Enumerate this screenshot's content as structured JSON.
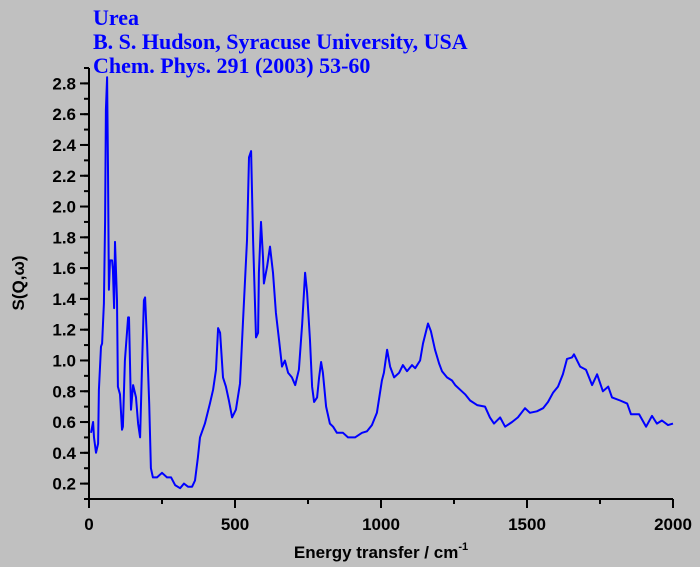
{
  "chart_data": {
    "type": "line",
    "title_lines": [
      "Urea",
      "B. S. Hudson, Syracuse University, USA",
      "Chem. Phys. 291 (2003) 53-60"
    ],
    "xlabel": "Energy transfer / cm",
    "xlabel_superscript": "-1",
    "ylabel": "S(Q,ω)",
    "xlim": [
      0,
      2000
    ],
    "ylim": [
      0.1,
      2.9
    ],
    "xticks": [
      0,
      500,
      1000,
      1500,
      2000
    ],
    "xminor_step": 250,
    "yticks": [
      0.2,
      0.4,
      0.6,
      0.8,
      1.0,
      1.2,
      1.4,
      1.6,
      1.8,
      2.0,
      2.2,
      2.4,
      2.6,
      2.8
    ],
    "yminor_step": 0.1,
    "grid": false,
    "colors": {
      "line": "#0000ff",
      "axis": "#000000",
      "background": "#c0c0c0",
      "title": "#0000ff"
    },
    "series": [
      {
        "name": "Urea",
        "points": [
          [
            7,
            0.53
          ],
          [
            14,
            0.6
          ],
          [
            17,
            0.5
          ],
          [
            24,
            0.4
          ],
          [
            31,
            0.46
          ],
          [
            34,
            0.81
          ],
          [
            41,
            1.09
          ],
          [
            45,
            1.11
          ],
          [
            51,
            1.37
          ],
          [
            55,
            1.91
          ],
          [
            58,
            2.63
          ],
          [
            62,
            2.84
          ],
          [
            65,
            2.24
          ],
          [
            68,
            1.46
          ],
          [
            72,
            1.65
          ],
          [
            79,
            1.65
          ],
          [
            82,
            1.59
          ],
          [
            86,
            1.34
          ],
          [
            89,
            1.77
          ],
          [
            96,
            1.39
          ],
          [
            99,
            0.83
          ],
          [
            106,
            0.78
          ],
          [
            113,
            0.55
          ],
          [
            116,
            0.57
          ],
          [
            123,
            1.0
          ],
          [
            134,
            1.28
          ],
          [
            137,
            1.28
          ],
          [
            144,
            0.68
          ],
          [
            151,
            0.84
          ],
          [
            161,
            0.76
          ],
          [
            168,
            0.59
          ],
          [
            175,
            0.5
          ],
          [
            182,
            0.98
          ],
          [
            188,
            1.39
          ],
          [
            192,
            1.41
          ],
          [
            199,
            1.11
          ],
          [
            206,
            0.72
          ],
          [
            212,
            0.3
          ],
          [
            219,
            0.24
          ],
          [
            233,
            0.24
          ],
          [
            250,
            0.27
          ],
          [
            267,
            0.24
          ],
          [
            281,
            0.24
          ],
          [
            295,
            0.19
          ],
          [
            312,
            0.17
          ],
          [
            325,
            0.2
          ],
          [
            339,
            0.18
          ],
          [
            353,
            0.18
          ],
          [
            363,
            0.22
          ],
          [
            373,
            0.37
          ],
          [
            380,
            0.5
          ],
          [
            397,
            0.59
          ],
          [
            414,
            0.72
          ],
          [
            425,
            0.81
          ],
          [
            435,
            0.94
          ],
          [
            442,
            1.21
          ],
          [
            449,
            1.18
          ],
          [
            459,
            0.89
          ],
          [
            469,
            0.83
          ],
          [
            479,
            0.74
          ],
          [
            490,
            0.63
          ],
          [
            503,
            0.68
          ],
          [
            517,
            0.85
          ],
          [
            527,
            1.24
          ],
          [
            541,
            1.78
          ],
          [
            548,
            2.32
          ],
          [
            555,
            2.36
          ],
          [
            562,
            1.78
          ],
          [
            572,
            1.15
          ],
          [
            579,
            1.18
          ],
          [
            582,
            1.57
          ],
          [
            589,
            1.9
          ],
          [
            596,
            1.67
          ],
          [
            599,
            1.5
          ],
          [
            610,
            1.61
          ],
          [
            620,
            1.74
          ],
          [
            630,
            1.57
          ],
          [
            640,
            1.31
          ],
          [
            651,
            1.13
          ],
          [
            661,
            0.96
          ],
          [
            671,
            1.0
          ],
          [
            682,
            0.92
          ],
          [
            695,
            0.89
          ],
          [
            706,
            0.84
          ],
          [
            719,
            0.94
          ],
          [
            730,
            1.24
          ],
          [
            740,
            1.57
          ],
          [
            747,
            1.44
          ],
          [
            757,
            1.13
          ],
          [
            764,
            0.83
          ],
          [
            771,
            0.73
          ],
          [
            781,
            0.76
          ],
          [
            788,
            0.89
          ],
          [
            795,
            0.99
          ],
          [
            801,
            0.92
          ],
          [
            812,
            0.7
          ],
          [
            825,
            0.59
          ],
          [
            836,
            0.57
          ],
          [
            849,
            0.53
          ],
          [
            870,
            0.53
          ],
          [
            887,
            0.5
          ],
          [
            911,
            0.5
          ],
          [
            935,
            0.53
          ],
          [
            952,
            0.54
          ],
          [
            969,
            0.58
          ],
          [
            986,
            0.66
          ],
          [
            1003,
            0.87
          ],
          [
            1010,
            0.92
          ],
          [
            1021,
            1.07
          ],
          [
            1031,
            0.96
          ],
          [
            1045,
            0.89
          ],
          [
            1062,
            0.92
          ],
          [
            1075,
            0.97
          ],
          [
            1089,
            0.93
          ],
          [
            1106,
            0.97
          ],
          [
            1117,
            0.95
          ],
          [
            1134,
            1.0
          ],
          [
            1144,
            1.11
          ],
          [
            1161,
            1.24
          ],
          [
            1171,
            1.19
          ],
          [
            1185,
            1.07
          ],
          [
            1199,
            0.98
          ],
          [
            1209,
            0.93
          ],
          [
            1226,
            0.89
          ],
          [
            1243,
            0.87
          ],
          [
            1254,
            0.84
          ],
          [
            1271,
            0.81
          ],
          [
            1288,
            0.78
          ],
          [
            1305,
            0.74
          ],
          [
            1329,
            0.71
          ],
          [
            1356,
            0.7
          ],
          [
            1373,
            0.63
          ],
          [
            1387,
            0.59
          ],
          [
            1408,
            0.63
          ],
          [
            1425,
            0.57
          ],
          [
            1449,
            0.6
          ],
          [
            1469,
            0.63
          ],
          [
            1493,
            0.69
          ],
          [
            1510,
            0.66
          ],
          [
            1534,
            0.67
          ],
          [
            1555,
            0.69
          ],
          [
            1572,
            0.73
          ],
          [
            1589,
            0.79
          ],
          [
            1606,
            0.83
          ],
          [
            1623,
            0.91
          ],
          [
            1637,
            1.01
          ],
          [
            1654,
            1.02
          ],
          [
            1661,
            1.04
          ],
          [
            1682,
            0.96
          ],
          [
            1702,
            0.94
          ],
          [
            1723,
            0.84
          ],
          [
            1740,
            0.91
          ],
          [
            1760,
            0.8
          ],
          [
            1778,
            0.83
          ],
          [
            1791,
            0.76
          ],
          [
            1819,
            0.74
          ],
          [
            1843,
            0.72
          ],
          [
            1856,
            0.65
          ],
          [
            1884,
            0.65
          ],
          [
            1908,
            0.57
          ],
          [
            1928,
            0.64
          ],
          [
            1945,
            0.59
          ],
          [
            1962,
            0.61
          ],
          [
            1983,
            0.58
          ],
          [
            2000,
            0.59
          ]
        ]
      }
    ]
  }
}
